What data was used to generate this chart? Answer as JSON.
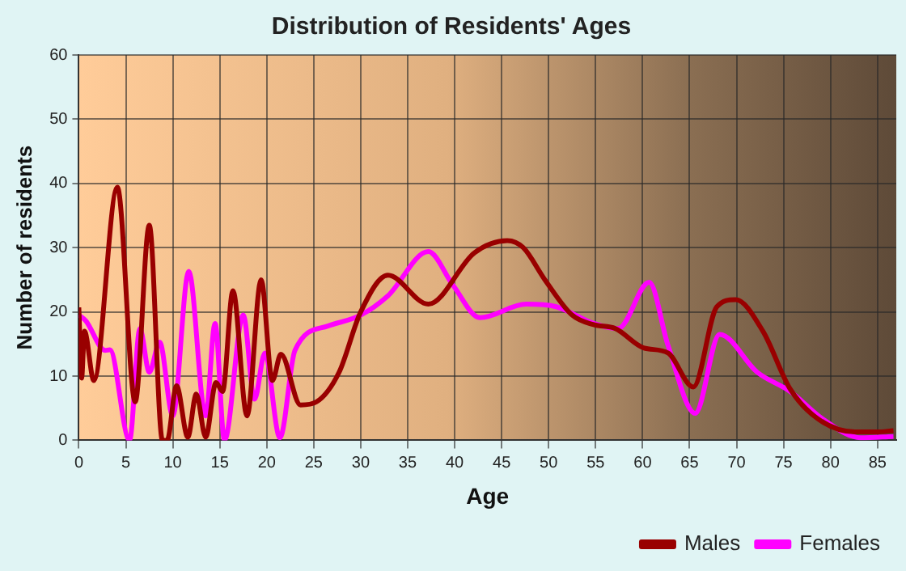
{
  "chart_data": {
    "type": "line",
    "title": "Distribution of Residents' Ages",
    "xlabel": "Age",
    "ylabel": "Number of residents",
    "xlim": [
      0,
      87
    ],
    "xticks": [
      0,
      5,
      10,
      15,
      20,
      25,
      30,
      35,
      40,
      45,
      50,
      55,
      60,
      65,
      70,
      75,
      80,
      85
    ],
    "ylim": [
      0,
      60
    ],
    "yticks": [
      0,
      10,
      20,
      30,
      40,
      50,
      60
    ],
    "grid": true,
    "legend": "bottom right",
    "marker": "none",
    "line_style": "solid",
    "series": [
      {
        "name": "Males",
        "color": "#990000",
        "x": [
          0,
          0.3,
          0.6,
          1.6,
          4.1,
          6,
          7.5,
          8.9,
          9.4,
          10.4,
          11.6,
          12.5,
          13.5,
          14.6,
          15.3,
          16.4,
          17.9,
          19.4,
          20.6,
          21.5,
          23.6,
          25.3,
          27.7,
          30,
          32.9,
          37.2,
          42.1,
          45.6,
          47.3,
          49.6,
          52.5,
          54.8,
          57.1,
          60.1,
          62.7,
          65.4,
          67.9,
          69.9,
          72.8,
          75.7,
          78.6,
          82.6,
          84.9,
          86.7
        ],
        "values": [
          20.7,
          9.7,
          17,
          9.3,
          39.4,
          6,
          33.5,
          0,
          0,
          8.5,
          0.5,
          7.2,
          0.5,
          9,
          7.6,
          23.3,
          3.8,
          25,
          9.3,
          13.4,
          5.5,
          6,
          10.6,
          20,
          25.7,
          21.2,
          29.2,
          31.1,
          30,
          25,
          19.5,
          18,
          17.4,
          14.4,
          13.6,
          8.3,
          20.8,
          21.9,
          17,
          8,
          3.4,
          1.3,
          1.3,
          1.5
        ]
      },
      {
        "name": "Females",
        "color": "#ff00ff",
        "x": [
          0,
          0.75,
          2.8,
          3.3,
          5.4,
          6.5,
          7.5,
          8.6,
          10,
          11.7,
          13.5,
          14.5,
          15.5,
          17.5,
          18.7,
          19.8,
          21.4,
          23,
          26.5,
          30,
          32.9,
          37.2,
          39.8,
          42.7,
          47.6,
          50.8,
          54.8,
          57.4,
          60.7,
          62.7,
          65.6,
          68.2,
          72.2,
          75.7,
          79.1,
          83.2,
          86.7
        ],
        "values": [
          19.5,
          18.6,
          14,
          14.1,
          0,
          17.4,
          10.6,
          15.3,
          3.8,
          26.3,
          3.8,
          18.2,
          0,
          19.5,
          6.4,
          13.6,
          0.4,
          14,
          17.8,
          19.5,
          22.5,
          29.4,
          24.2,
          19.1,
          21.2,
          20.8,
          18.2,
          17.4,
          24.6,
          14.8,
          4.2,
          16.5,
          10.6,
          7.6,
          3.4,
          0.4,
          0.6
        ]
      }
    ]
  }
}
